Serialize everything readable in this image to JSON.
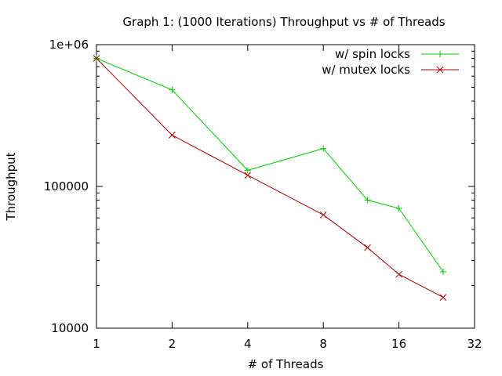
{
  "chart_data": {
    "type": "line",
    "title": "Graph 1: (1000 Iterations) Throughput vs # of Threads",
    "xlabel": "# of Threads",
    "ylabel": "Throughput",
    "x_scale": "log2",
    "y_scale": "log10",
    "xlim": [
      1,
      32
    ],
    "ylim": [
      10000,
      1000000
    ],
    "x_ticks": [
      1,
      2,
      4,
      8,
      16,
      32
    ],
    "x_tick_labels": [
      "1",
      "2",
      "4",
      "8",
      "16",
      "32"
    ],
    "y_ticks": [
      10000,
      100000,
      1000000
    ],
    "y_tick_labels": [
      "10000",
      "100000",
      "1e+06"
    ],
    "legend_position": "top-right",
    "grid": false,
    "series": [
      {
        "name": "w/ spin locks",
        "color": "#00cc00",
        "marker": "plus",
        "x": [
          1,
          2,
          4,
          8,
          12,
          16,
          24
        ],
        "y": [
          800000,
          480000,
          130000,
          185000,
          80000,
          70000,
          25000
        ]
      },
      {
        "name": "w/ mutex locks",
        "color": "#aa0000",
        "marker": "cross",
        "x": [
          1,
          2,
          4,
          8,
          12,
          16,
          24
        ],
        "y": [
          800000,
          230000,
          120000,
          63000,
          37000,
          24000,
          16500
        ]
      }
    ]
  }
}
